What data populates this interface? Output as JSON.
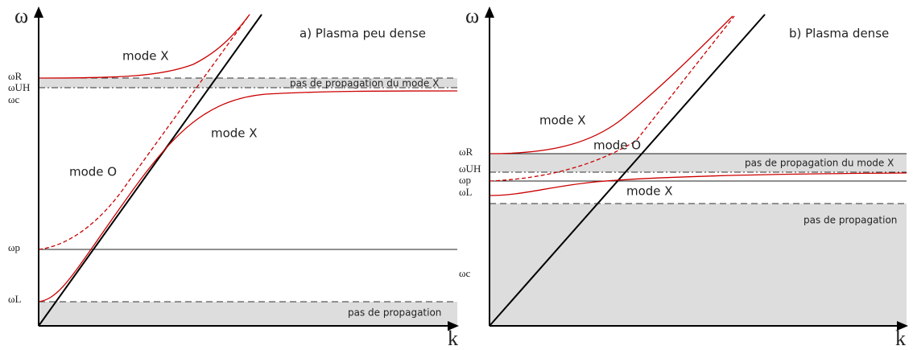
{
  "panels": [
    {
      "title": "a) Plasma peu dense",
      "y_axis": "ω",
      "x_axis": "k",
      "levels": [
        "ωR",
        "ωUH",
        "ωc",
        "ωp",
        "ωL"
      ],
      "curve_labels": [
        "mode X",
        "mode X",
        "mode O"
      ],
      "regions": [
        "pas de propagation du mode X",
        "pas de propagation"
      ]
    },
    {
      "title": "b) Plasma dense",
      "y_axis": "ω",
      "x_axis": "k",
      "levels": [
        "ωR",
        "ωUH",
        "ωp",
        "ωL",
        "ωc"
      ],
      "curve_labels": [
        "mode X",
        "mode O",
        "mode X"
      ],
      "regions": [
        "pas de propagation du mode X",
        "pas de propagation"
      ]
    }
  ]
}
